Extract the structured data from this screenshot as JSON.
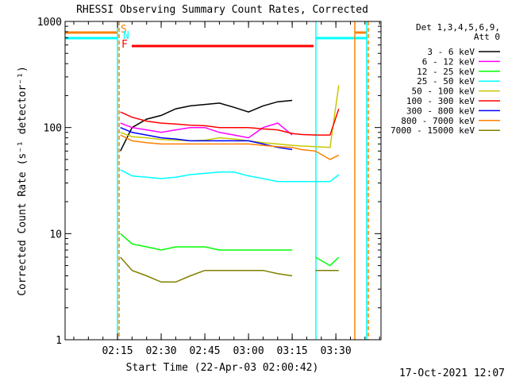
{
  "chart_data": {
    "type": "line",
    "title": "RHESSI Observing Summary Count Rates, Corrected",
    "xlabel": "Start Time (22-Apr-03 02:00:42)",
    "ylabel": "Corrected Count Rate (s⁻¹ detector⁻¹)",
    "legend_title": [
      "Det 1,3,4,5,6,9,",
      "Att 0"
    ],
    "timestamp": "17-Oct-2021 12:07",
    "flags": [
      "S",
      "N",
      "F"
    ],
    "log_y": true,
    "xlim": [
      117,
      225.5
    ],
    "xticks": [
      {
        "value": 135,
        "label": "02:15"
      },
      {
        "value": 150,
        "label": "02:30"
      },
      {
        "value": 165,
        "label": "02:45"
      },
      {
        "value": 180,
        "label": "03:00"
      },
      {
        "value": 195,
        "label": "03:15"
      },
      {
        "value": 210,
        "label": "03:30"
      }
    ],
    "ylim": [
      1,
      1000
    ],
    "yticks": [
      1,
      10,
      100,
      1000
    ],
    "x": [
      136,
      140,
      145,
      150,
      155,
      160,
      165,
      170,
      175,
      180,
      185,
      190,
      195,
      198,
      203,
      208,
      211
    ],
    "series": [
      {
        "name": "3 - 6 keV",
        "color": "#000000",
        "values": [
          60,
          100,
          120,
          130,
          150,
          160,
          165,
          170,
          155,
          140,
          160,
          175,
          180,
          null,
          null,
          null,
          null
        ]
      },
      {
        "name": "6 - 12 keV",
        "color": "#ff00ff",
        "values": [
          110,
          100,
          95,
          90,
          95,
          100,
          100,
          90,
          85,
          80,
          100,
          110,
          85,
          null,
          null,
          null,
          null
        ]
      },
      {
        "name": "12 - 25 keV",
        "color": "#00ff00",
        "values": [
          10,
          8,
          7.5,
          7,
          7.5,
          7.5,
          7.5,
          7,
          7,
          7,
          7,
          7,
          7,
          null,
          6,
          5,
          6
        ]
      },
      {
        "name": "25 - 50 keV",
        "color": "#00ffff",
        "values": [
          40,
          35,
          34,
          33,
          34,
          36,
          37,
          38,
          38,
          35,
          33,
          31,
          31,
          31,
          31,
          31,
          36
        ]
      },
      {
        "name": "50 - 100 keV",
        "color": "#c8c800",
        "values": [
          90,
          82,
          80,
          77,
          76,
          75,
          76,
          80,
          78,
          75,
          72,
          70,
          68,
          67,
          66,
          65,
          250
        ]
      },
      {
        "name": "100 - 300 keV",
        "color": "#ff0000",
        "values": [
          140,
          125,
          115,
          110,
          108,
          105,
          104,
          100,
          100,
          100,
          97,
          95,
          88,
          86,
          85,
          85,
          150
        ]
      },
      {
        "name": "300 - 800 keV",
        "color": "#0000ff",
        "values": [
          100,
          90,
          85,
          80,
          78,
          75,
          75,
          75,
          75,
          75,
          70,
          65,
          62,
          null,
          null,
          null,
          null
        ]
      },
      {
        "name": "800 - 7000 keV",
        "color": "#ff8000",
        "values": [
          85,
          75,
          72,
          70,
          70,
          70,
          70,
          70,
          70,
          70,
          68,
          66,
          65,
          62,
          60,
          50,
          55
        ]
      },
      {
        "name": "7000 - 15000 keV",
        "color": "#808000",
        "values": [
          6,
          4.5,
          4,
          3.5,
          3.5,
          4,
          4.5,
          4.5,
          4.5,
          4.5,
          4.5,
          4.2,
          4,
          null,
          4.5,
          4.5,
          4.5
        ]
      }
    ]
  }
}
